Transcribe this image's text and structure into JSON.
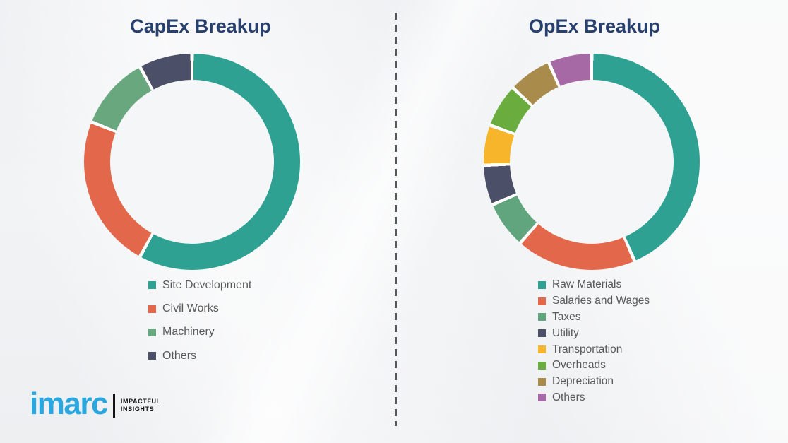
{
  "page": {
    "background_color": "#F3F4F6",
    "title_color": "#27406E",
    "legend_text_color": "#595959",
    "divider_color": "#54585B",
    "divider_style": "vertical-dashed"
  },
  "chart_data": [
    {
      "type": "pie",
      "subtype": "donut",
      "title": "CapEx Breakup",
      "labels": [
        "Site Development",
        "Civil Works",
        "Machinery",
        "Others"
      ],
      "values": [
        58,
        23,
        11,
        8
      ],
      "unit": "percent (estimated from arc angles, no data labels shown)",
      "colors": [
        "#2EA193",
        "#E2674B",
        "#69A87F",
        "#4B4F68"
      ],
      "start_angle_deg": 0,
      "direction": "clockwise",
      "legend_position": "bottom"
    },
    {
      "type": "pie",
      "subtype": "donut",
      "title": "OpEx Breakup",
      "labels": [
        "Raw Materials",
        "Salaries and Wages",
        "Taxes",
        "Utility",
        "Transportation",
        "Overheads",
        "Depreciation",
        "Others"
      ],
      "values": [
        43.5,
        18,
        7,
        6,
        6,
        6.5,
        6.5,
        6.5
      ],
      "unit": "percent (estimated from arc angles, no data labels shown)",
      "colors": [
        "#2EA193",
        "#E2674B",
        "#61A57F",
        "#4B4F68",
        "#F6B52B",
        "#6BAC3E",
        "#A98C4B",
        "#A768A6"
      ],
      "start_angle_deg": 0,
      "direction": "clockwise",
      "legend_position": "bottom"
    }
  ],
  "logo": {
    "brand": "imarc",
    "brand_color": "#2AA7DF",
    "tagline_line1": "IMPACTFUL",
    "tagline_line2": "INSIGHTS",
    "tagline_color": "#141414"
  }
}
